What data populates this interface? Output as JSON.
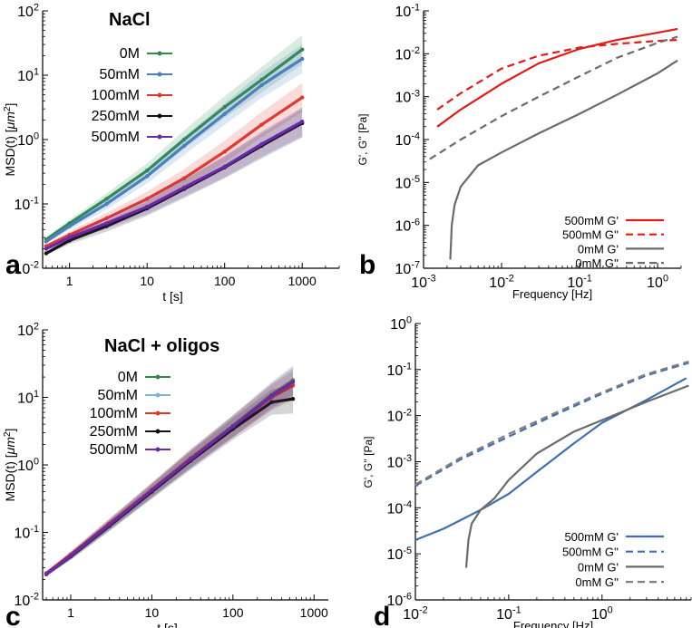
{
  "colors": {
    "0M": "#2e8b4a",
    "50mM_a": "#4a7fc0",
    "50mM_c": "#7fb3d6",
    "100mM": "#e03a30",
    "250mM": "#111111",
    "500mM": "#6a2aa8",
    "red": "#e21c14",
    "gray": "#6b6b6b",
    "blue": "#3e6fb3",
    "lightgray": "#7f7f7f"
  },
  "chart_data": [
    {
      "panel": "a",
      "panel_label": "a",
      "type": "line",
      "title": "NaCl",
      "xlabel": "t [s]",
      "ylabel": "MSD(t) [μm²]",
      "ylabel_main": "MSD(t) [",
      "ylabel_unit": "μm",
      "ylabel_sup": "2",
      "ylabel_end": "]",
      "xscale": "log",
      "yscale": "log",
      "xlim": [
        0.45,
        3000
      ],
      "ylim": [
        0.01,
        100
      ],
      "xticks": [
        1,
        10,
        100,
        1000
      ],
      "xticklabels": [
        "1",
        "10",
        "100",
        "1000"
      ],
      "yticks": [
        0.01,
        0.1,
        1,
        10,
        100
      ],
      "yticklabels": [
        [
          "10",
          "-2"
        ],
        [
          "10",
          "-1"
        ],
        [
          "10",
          "0"
        ],
        [
          "10",
          "1"
        ],
        [
          "10",
          "2"
        ]
      ],
      "legend": "top-left",
      "series": [
        {
          "name": "0M",
          "color": "0M",
          "x": [
            0.5,
            1,
            3,
            10,
            30,
            100,
            300,
            1000
          ],
          "y": [
            0.028,
            0.05,
            0.12,
            0.33,
            1.0,
            3.2,
            8.5,
            25
          ]
        },
        {
          "name": "50mM",
          "color": "50mM_a",
          "x": [
            0.5,
            1,
            3,
            10,
            30,
            100,
            300,
            1000
          ],
          "y": [
            0.026,
            0.045,
            0.1,
            0.27,
            0.8,
            2.5,
            7.0,
            18
          ]
        },
        {
          "name": "100mM",
          "color": "100mM",
          "x": [
            0.5,
            1,
            3,
            10,
            30,
            100,
            300,
            1000
          ],
          "y": [
            0.022,
            0.033,
            0.06,
            0.12,
            0.25,
            0.65,
            1.7,
            4.5
          ]
        },
        {
          "name": "250mM",
          "color": "250mM",
          "x": [
            0.5,
            1,
            3,
            10,
            30,
            100,
            300,
            1000
          ],
          "y": [
            0.017,
            0.027,
            0.045,
            0.085,
            0.17,
            0.37,
            0.8,
            1.8
          ]
        },
        {
          "name": "500mM",
          "color": "500mM",
          "x": [
            0.5,
            1,
            3,
            10,
            30,
            100,
            300,
            1000
          ],
          "y": [
            0.02,
            0.03,
            0.05,
            0.09,
            0.18,
            0.38,
            0.85,
            1.9
          ]
        }
      ]
    },
    {
      "panel": "b",
      "panel_label": "b",
      "type": "line",
      "xlabel": "Frequency [Hz]",
      "ylabel": "G', G'' [Pa]",
      "xscale": "log",
      "yscale": "log",
      "xlim": [
        0.001,
        2
      ],
      "ylim": [
        1e-07,
        0.1
      ],
      "xticks": [
        0.001,
        0.01,
        0.1,
        1
      ],
      "xticklabels": [
        [
          "10",
          "-3"
        ],
        [
          "10",
          "-2"
        ],
        [
          "10",
          "-1"
        ],
        [
          "10",
          "0"
        ]
      ],
      "yticks": [
        1e-07,
        1e-06,
        1e-05,
        0.0001,
        0.001,
        0.01,
        0.1
      ],
      "yticklabels": [
        [
          "10",
          "-7"
        ],
        [
          "10",
          "-6"
        ],
        [
          "10",
          "-5"
        ],
        [
          "10",
          "-4"
        ],
        [
          "10",
          "-3"
        ],
        [
          "10",
          "-2"
        ],
        [
          "10",
          "-1"
        ]
      ],
      "legend": "bottom-right",
      "series": [
        {
          "name": "500mM G'",
          "color": "red",
          "dash": false,
          "x": [
            0.0015,
            0.003,
            0.01,
            0.03,
            0.1,
            0.3,
            1,
            1.8
          ],
          "y": [
            0.0002,
            0.0005,
            0.002,
            0.006,
            0.013,
            0.021,
            0.031,
            0.038
          ]
        },
        {
          "name": "500mM G''",
          "color": "red",
          "dash": true,
          "x": [
            0.0015,
            0.003,
            0.01,
            0.03,
            0.1,
            0.3,
            1,
            1.8
          ],
          "y": [
            0.0005,
            0.0012,
            0.0045,
            0.009,
            0.014,
            0.017,
            0.02,
            0.021
          ]
        },
        {
          "name": "0mM G'",
          "color": "gray",
          "dash": false,
          "x": [
            0.0022,
            0.0023,
            0.0025,
            0.003,
            0.005,
            0.01,
            0.03,
            0.1,
            0.3,
            1,
            1.8
          ],
          "y": [
            1.6e-07,
            1e-06,
            3e-06,
            8e-06,
            2.5e-05,
            5e-05,
            0.00014,
            0.0004,
            0.0011,
            0.0035,
            0.007
          ]
        },
        {
          "name": "0mM G''",
          "color": "gray",
          "dash": true,
          "x": [
            0.0012,
            0.003,
            0.01,
            0.03,
            0.1,
            0.3,
            1,
            1.8
          ],
          "y": [
            3.5e-05,
            0.0001,
            0.00035,
            0.001,
            0.003,
            0.008,
            0.018,
            0.025
          ]
        }
      ]
    },
    {
      "panel": "c",
      "panel_label": "c",
      "type": "line",
      "title": "NaCl + oligos",
      "xlabel": "t [s]",
      "ylabel": "MSD(t) [μm²]",
      "ylabel_main": "MSD(t) [",
      "ylabel_unit": "μm",
      "ylabel_sup": "2",
      "ylabel_end": "]",
      "xscale": "log",
      "yscale": "log",
      "xlim": [
        0.45,
        1500
      ],
      "ylim": [
        0.01,
        100
      ],
      "xticks": [
        1,
        10,
        100,
        1000
      ],
      "xticklabels": [
        "1",
        "10",
        "100",
        "1000"
      ],
      "yticks": [
        0.01,
        0.1,
        1,
        10,
        100
      ],
      "yticklabels": [
        [
          "10",
          "-2"
        ],
        [
          "10",
          "-1"
        ],
        [
          "10",
          "0"
        ],
        [
          "10",
          "1"
        ],
        [
          "10",
          "2"
        ]
      ],
      "legend": "top-left",
      "series": [
        {
          "name": "0M",
          "color": "0M",
          "x": [
            0.5,
            1,
            3,
            10,
            30,
            100,
            300,
            550
          ],
          "y": [
            0.024,
            0.045,
            0.13,
            0.42,
            1.25,
            3.8,
            11,
            18
          ]
        },
        {
          "name": "50mM",
          "color": "50mM_c",
          "x": [
            0.5,
            1,
            3,
            10,
            30,
            100,
            300,
            550
          ],
          "y": [
            0.024,
            0.045,
            0.13,
            0.41,
            1.2,
            3.7,
            10,
            16
          ]
        },
        {
          "name": "100mM",
          "color": "100mM",
          "x": [
            0.5,
            1,
            3,
            10,
            30,
            100,
            300,
            550
          ],
          "y": [
            0.025,
            0.047,
            0.135,
            0.43,
            1.25,
            3.7,
            10,
            15
          ]
        },
        {
          "name": "250mM",
          "color": "250mM",
          "x": [
            0.5,
            1,
            3,
            10,
            30,
            100,
            300,
            550
          ],
          "y": [
            0.024,
            0.044,
            0.125,
            0.4,
            1.15,
            3.4,
            8.5,
            9.5
          ]
        },
        {
          "name": "500mM",
          "color": "500mM",
          "x": [
            0.5,
            1,
            3,
            10,
            30,
            100,
            300,
            550
          ],
          "y": [
            0.024,
            0.045,
            0.13,
            0.42,
            1.2,
            3.7,
            10.5,
            17
          ]
        }
      ]
    },
    {
      "panel": "d",
      "panel_label": "d",
      "type": "line",
      "xlabel": "Frequency [Hz]",
      "ylabel": "G', G'' [Pa]",
      "xscale": "log",
      "yscale": "log",
      "xlim": [
        0.01,
        9
      ],
      "ylim": [
        1e-06,
        1
      ],
      "xticks": [
        0.01,
        0.1,
        1
      ],
      "xticklabels": [
        [
          "10",
          "-2"
        ],
        [
          "10",
          "-1"
        ],
        [
          "10",
          "0"
        ]
      ],
      "yticks": [
        1e-06,
        1e-05,
        0.0001,
        0.001,
        0.01,
        0.1,
        1
      ],
      "yticklabels": [
        [
          "10",
          "-6"
        ],
        [
          "10",
          "-5"
        ],
        [
          "10",
          "-4"
        ],
        [
          "10",
          "-3"
        ],
        [
          "10",
          "-2"
        ],
        [
          "10",
          "-1"
        ],
        [
          "10",
          "0"
        ]
      ],
      "legend": "bottom-right",
      "series": [
        {
          "name": "500mM G'",
          "color": "blue",
          "dash": false,
          "x": [
            0.01,
            0.02,
            0.05,
            0.1,
            0.2,
            0.5,
            1,
            3,
            8
          ],
          "y": [
            2e-05,
            3.5e-05,
            9e-05,
            0.0002,
            0.0006,
            0.0025,
            0.007,
            0.022,
            0.065
          ]
        },
        {
          "name": "500mM G''",
          "color": "blue",
          "dash": true,
          "x": [
            0.01,
            0.03,
            0.1,
            0.3,
            1,
            3,
            8.5
          ],
          "y": [
            0.0003,
            0.0011,
            0.0035,
            0.01,
            0.03,
            0.075,
            0.14
          ]
        },
        {
          "name": "0mM G'",
          "color": "gray",
          "dash": false,
          "x": [
            0.035,
            0.037,
            0.04,
            0.05,
            0.07,
            0.1,
            0.2,
            0.5,
            1,
            3,
            8.5
          ],
          "y": [
            5e-06,
            2e-05,
            4.5e-05,
            9e-05,
            0.00016,
            0.0004,
            0.0015,
            0.0045,
            0.008,
            0.02,
            0.045
          ]
        },
        {
          "name": "0mM G''",
          "color": "lightgray",
          "dash": true,
          "x": [
            0.01,
            0.03,
            0.1,
            0.3,
            1,
            3,
            8.5
          ],
          "y": [
            0.00032,
            0.0012,
            0.004,
            0.011,
            0.032,
            0.08,
            0.15
          ]
        }
      ]
    }
  ]
}
